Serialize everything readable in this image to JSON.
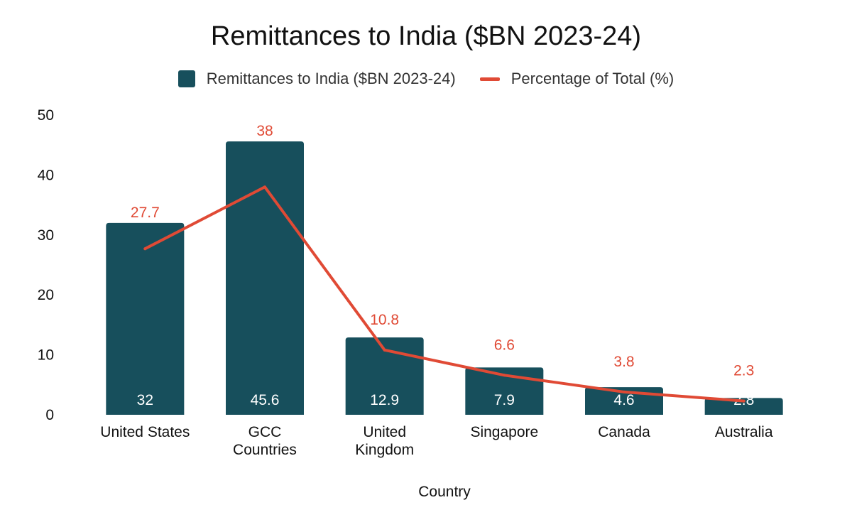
{
  "chart": {
    "title": "Remittances to India ($BN 2023-24)",
    "xlabel": "Country"
  },
  "legend": {
    "bars": "Remittances to India ($BN 2023-24)",
    "line": "Percentage of Total (%)"
  },
  "colors": {
    "bar": "#174f5c",
    "line": "#e04a35"
  },
  "chart_data": {
    "type": "bar",
    "title": "Remittances to India ($BN 2023-24)",
    "xlabel": "Country",
    "ylabel": "",
    "categories": [
      [
        "United States"
      ],
      [
        "GCC",
        "Countries"
      ],
      [
        "United",
        "Kingdom"
      ],
      [
        "Singapore"
      ],
      [
        "Canada"
      ],
      [
        "Australia"
      ]
    ],
    "ylim": [
      0,
      50
    ],
    "yticks": [
      0,
      10,
      20,
      30,
      40,
      50
    ],
    "grid": false,
    "legend_position": "top",
    "series": [
      {
        "name": "Remittances to India ($BN 2023-24)",
        "type": "bar",
        "values": [
          32,
          45.6,
          12.9,
          7.9,
          4.6,
          2.8
        ],
        "labels": [
          "32",
          "45.6",
          "12.9",
          "7.9",
          "4.6",
          "2.8"
        ]
      },
      {
        "name": "Percentage of Total (%)",
        "type": "line",
        "values": [
          27.7,
          38,
          10.8,
          6.6,
          3.8,
          2.3
        ],
        "labels": [
          "27.7",
          "38",
          "10.8",
          "6.6",
          "3.8",
          "2.3"
        ]
      }
    ]
  }
}
